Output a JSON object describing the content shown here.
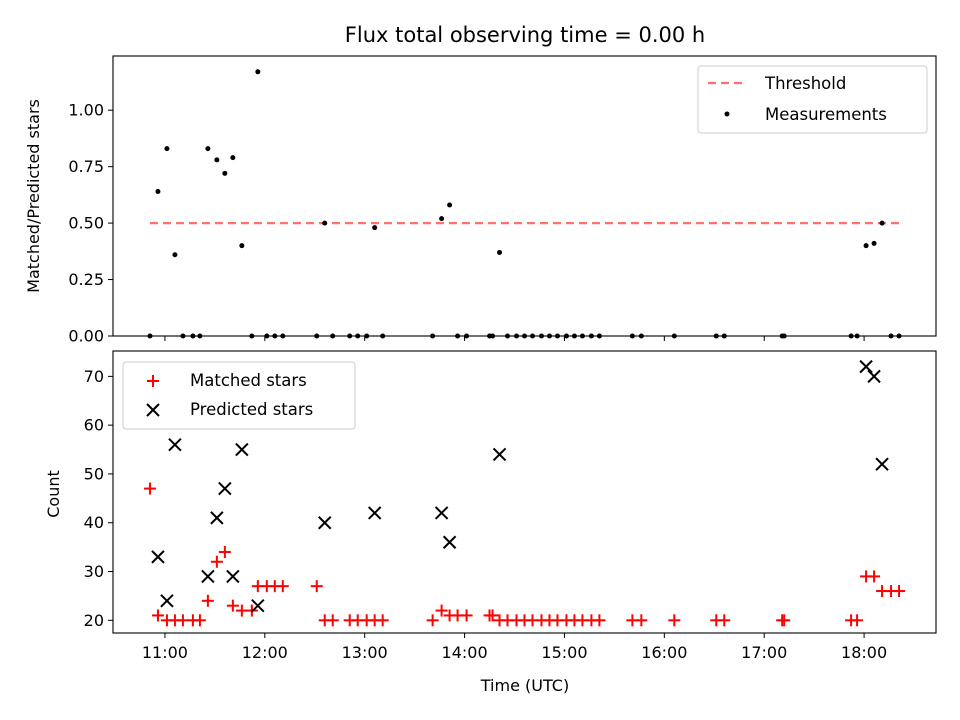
{
  "chart_data": [
    {
      "type": "scatter",
      "title": "Flux total observing time = 0.00 h",
      "xlabel": "",
      "ylabel": "Matched/Predicted stars",
      "ylim": [
        0,
        1.24
      ],
      "yticks": [
        "0.00",
        "0.25",
        "0.50",
        "0.75",
        "1.00"
      ],
      "legend_position": "top-right",
      "threshold": {
        "name": "Threshold",
        "y": 0.5,
        "x_range": [
          10.85,
          18.35
        ],
        "color": "#ff7070",
        "style": "dashed"
      },
      "series": [
        {
          "name": "Measurements",
          "color": "#000000",
          "x": [
            10.85,
            10.93,
            11.02,
            11.1,
            11.18,
            11.28,
            11.35,
            11.43,
            11.52,
            11.6,
            11.68,
            11.77,
            11.87,
            11.93,
            12.02,
            12.1,
            12.18,
            12.52,
            12.6,
            12.68,
            12.85,
            12.93,
            13.02,
            13.1,
            13.18,
            13.68,
            13.77,
            13.85,
            13.93,
            14.02,
            14.25,
            14.28,
            14.35,
            14.43,
            14.52,
            14.6,
            14.68,
            14.77,
            14.85,
            14.93,
            15.02,
            15.1,
            15.18,
            15.27,
            15.35,
            15.68,
            15.77,
            16.1,
            16.52,
            16.6,
            17.18,
            17.2,
            17.87,
            17.93,
            18.02,
            18.1,
            18.18,
            18.27,
            18.35
          ],
          "y": [
            0.0,
            0.64,
            0.83,
            0.36,
            0.0,
            0.0,
            0.0,
            0.83,
            0.78,
            0.72,
            0.79,
            0.4,
            0.0,
            1.17,
            0.0,
            0.0,
            0.0,
            0.0,
            0.5,
            0.0,
            0.0,
            0.0,
            0.0,
            0.48,
            0.0,
            0.0,
            0.52,
            0.58,
            0.0,
            0.0,
            0.0,
            0.0,
            0.37,
            0.0,
            0.0,
            0.0,
            0.0,
            0.0,
            0.0,
            0.0,
            0.0,
            0.0,
            0.0,
            0.0,
            0.0,
            0.0,
            0.0,
            0.0,
            0.0,
            0.0,
            0.0,
            0.0,
            0.0,
            0.0,
            0.4,
            0.41,
            0.5,
            0.0,
            0.0
          ]
        }
      ]
    },
    {
      "type": "scatter",
      "title": "",
      "xlabel": "Time (UTC)",
      "ylabel": "Count",
      "xlim": [
        10.48,
        18.72
      ],
      "xtick_values": [
        11,
        12,
        13,
        14,
        15,
        16,
        17,
        18
      ],
      "xticks": [
        "11:00",
        "12:00",
        "13:00",
        "14:00",
        "15:00",
        "16:00",
        "17:00",
        "18:00"
      ],
      "ylim": [
        17.4,
        75.2
      ],
      "ytick_values": [
        20,
        30,
        40,
        50,
        60,
        70
      ],
      "yticks": [
        "20",
        "30",
        "40",
        "50",
        "60",
        "70"
      ],
      "legend_position": "top-left",
      "series": [
        {
          "name": "Matched stars",
          "marker": "+",
          "color": "#ff0000",
          "x": [
            10.85,
            10.93,
            11.02,
            11.1,
            11.18,
            11.28,
            11.35,
            11.43,
            11.52,
            11.6,
            11.68,
            11.77,
            11.87,
            11.93,
            12.02,
            12.1,
            12.18,
            12.52,
            12.6,
            12.68,
            12.85,
            12.93,
            13.02,
            13.1,
            13.18,
            13.68,
            13.77,
            13.85,
            13.93,
            14.02,
            14.25,
            14.28,
            14.35,
            14.43,
            14.52,
            14.6,
            14.68,
            14.77,
            14.85,
            14.93,
            15.02,
            15.1,
            15.18,
            15.27,
            15.35,
            15.68,
            15.77,
            16.1,
            16.52,
            16.6,
            17.18,
            17.2,
            17.87,
            17.93,
            18.02,
            18.1,
            18.18,
            18.27,
            18.35
          ],
          "y": [
            47,
            21,
            20,
            20,
            20,
            20,
            20,
            24,
            32,
            34,
            23,
            22,
            22,
            27,
            27,
            27,
            27,
            27,
            20,
            20,
            20,
            20,
            20,
            20,
            20,
            20,
            22,
            21,
            21,
            21,
            21,
            21,
            20,
            20,
            20,
            20,
            20,
            20,
            20,
            20,
            20,
            20,
            20,
            20,
            20,
            20,
            20,
            20,
            20,
            20,
            20,
            20,
            20,
            20,
            29,
            29,
            26,
            26,
            26
          ]
        },
        {
          "name": "Predicted stars",
          "marker": "x",
          "color": "#000000",
          "x": [
            10.93,
            11.02,
            11.1,
            11.43,
            11.52,
            11.6,
            11.68,
            11.77,
            11.93,
            12.6,
            13.1,
            13.77,
            13.85,
            14.35,
            18.02,
            18.1,
            18.18
          ],
          "y": [
            33,
            24,
            56,
            29,
            41,
            47,
            29,
            55,
            23,
            40,
            42,
            42,
            36,
            54,
            72,
            70,
            52
          ]
        }
      ]
    }
  ]
}
